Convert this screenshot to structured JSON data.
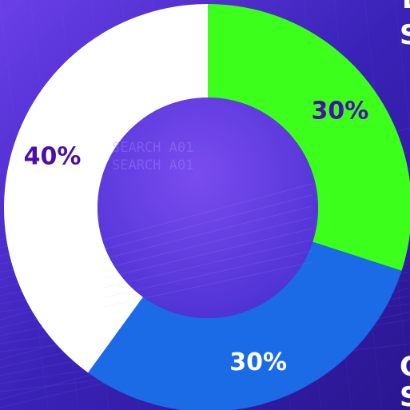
{
  "chart_data": {
    "type": "pie",
    "donut": true,
    "slices": [
      {
        "label": "30%",
        "value": 30,
        "color": "#3dff1c",
        "label_color": "#4b0fa8"
      },
      {
        "label": "30%",
        "value": 30,
        "color": "#1b6be6",
        "label_color": "#ffffff"
      },
      {
        "label": "40%",
        "value": 40,
        "color": "#ffffff",
        "label_color": "#4b0fa8"
      }
    ],
    "start": "top",
    "direction": "clockwise",
    "title": "",
    "legend": "none"
  },
  "background": {
    "hud_text": [
      "SEARCH  A01",
      "SEARCH  A01"
    ],
    "edge_text": [
      "E",
      "S",
      "C",
      "S"
    ],
    "colors": {
      "deep": "#2a1690",
      "mid": "#4a2fd0",
      "light": "#7a4cf0",
      "hole": "#6a3ee6"
    }
  }
}
